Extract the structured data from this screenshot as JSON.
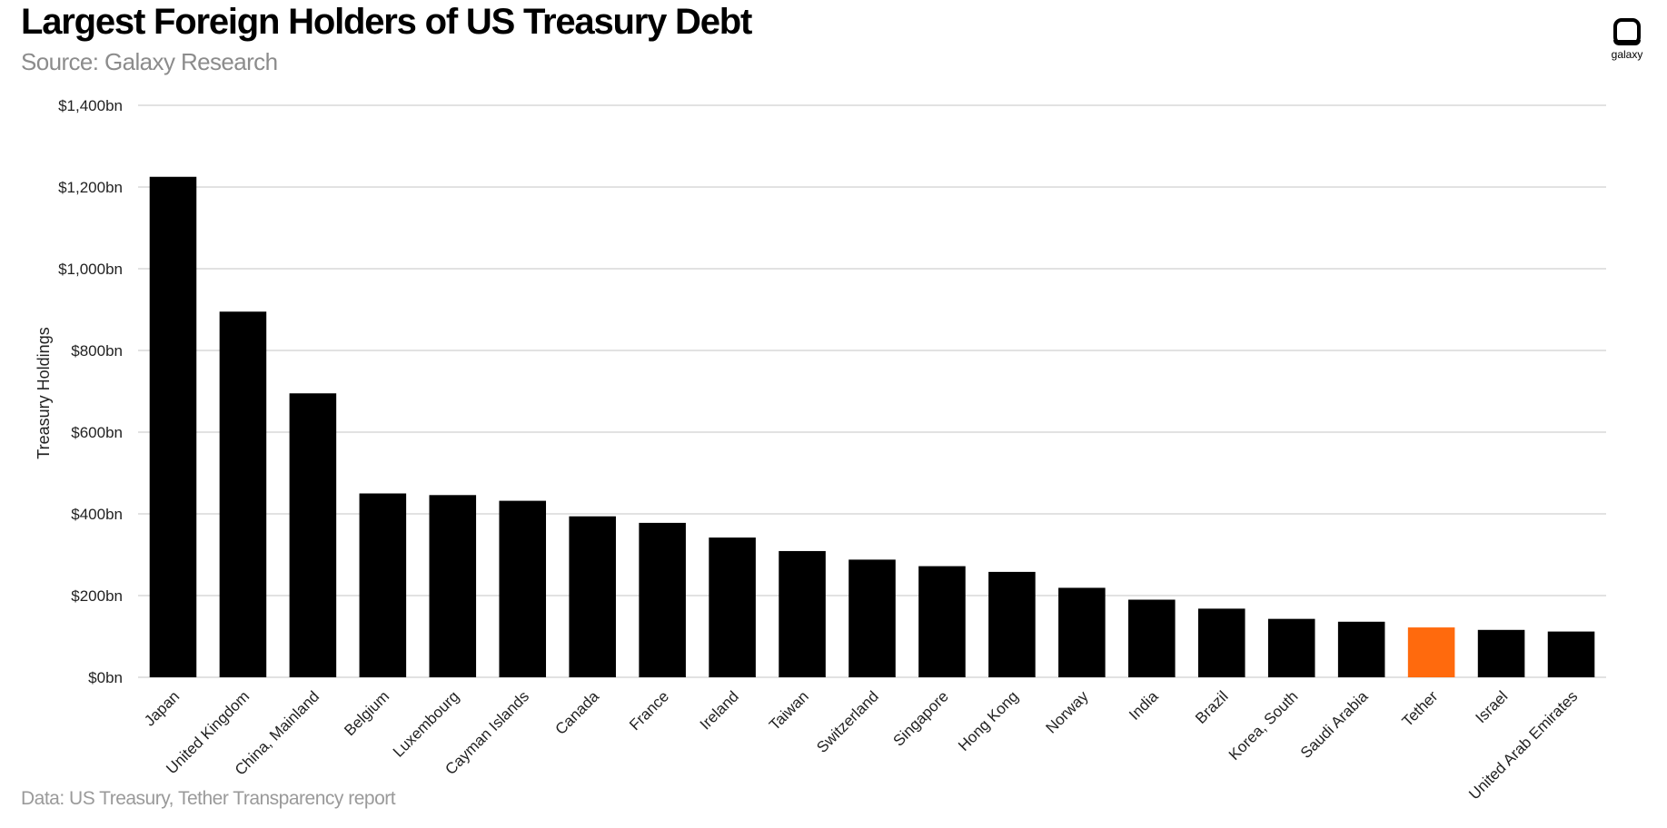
{
  "title": "Largest Foreign Holders of US Treasury Debt",
  "subtitle": "Source: Galaxy Research",
  "footnote": "Data: US Treasury, Tether Transparency report",
  "logo": {
    "text": "galaxy",
    "icon": "galaxy-logo-icon"
  },
  "colors": {
    "bar": "#000000",
    "highlight": "#ff6a0d",
    "grid": "#d0d0d0"
  },
  "chart_data": {
    "type": "bar",
    "title": "Largest Foreign Holders of US Treasury Debt",
    "ylabel": "Treasury Holdings",
    "xlabel": "",
    "ylim": [
      0,
      1400
    ],
    "yticks": [
      0,
      200,
      400,
      600,
      800,
      1000,
      1200,
      1400
    ],
    "ytick_labels": [
      "$0bn",
      "$200bn",
      "$400bn",
      "$600bn",
      "$800bn",
      "$1,000bn",
      "$1,200bn",
      "$1,400bn"
    ],
    "grid": true,
    "highlight": "Tether",
    "categories": [
      "Japan",
      "United Kingdom",
      "China, Mainland",
      "Belgium",
      "Luxembourg",
      "Cayman Islands",
      "Canada",
      "France",
      "Ireland",
      "Taiwan",
      "Switzerland",
      "Singapore",
      "Hong Kong",
      "Norway",
      "India",
      "Brazil",
      "Korea, South",
      "Saudi Arabia",
      "Tether",
      "Israel",
      "United Arab Emirates"
    ],
    "values": [
      1225,
      895,
      695,
      450,
      446,
      432,
      394,
      378,
      342,
      309,
      288,
      272,
      258,
      219,
      190,
      168,
      143,
      136,
      122,
      116,
      112
    ]
  }
}
